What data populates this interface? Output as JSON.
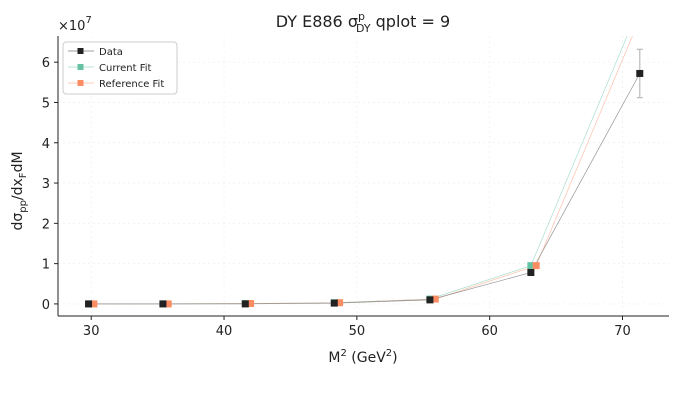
{
  "chart_data": {
    "type": "line",
    "title_main": "DY E886 σ",
    "title_sup": "p",
    "title_sub": "DY",
    "title_tail": " qplot = 9",
    "xlabel_main": "M",
    "xlabel_sup": "2",
    "xlabel_mid": " (GeV",
    "xlabel_sup2": "2",
    "xlabel_tail": ")",
    "ylabel_prefix": "dσ",
    "ylabel_sub1": "pp",
    "ylabel_mid": "/dx",
    "ylabel_sub2": "F",
    "ylabel_tail": "dM",
    "y_multiplier_base": "×10",
    "y_multiplier_exp": "7",
    "xlim": [
      27.5,
      73.5
    ],
    "ylim": [
      -0.3,
      6.65
    ],
    "x_ticks": [
      30,
      40,
      50,
      60,
      70
    ],
    "y_ticks": [
      0,
      1,
      2,
      3,
      4,
      5,
      6
    ],
    "y_scale_note": "values in units of 1e7",
    "grid": true,
    "legend_position": "top-left",
    "series": [
      {
        "name": "Data",
        "color": "#222222",
        "line_color": "#888888",
        "x": [
          29.8,
          35.4,
          41.6,
          48.3,
          55.5,
          63.1,
          71.3
        ],
        "y": [
          0.0,
          0.0,
          0.0,
          0.02,
          0.1,
          0.78,
          5.72
        ],
        "yerr": [
          0.0,
          0.0,
          0.0,
          0.0,
          0.0,
          0.03,
          0.6
        ]
      },
      {
        "name": "Current Fit",
        "color": "#66c2a5",
        "x": [
          29.8,
          35.4,
          41.6,
          48.3,
          55.5,
          63.1,
          71.3
        ],
        "y": [
          0.0,
          0.0,
          0.01,
          0.03,
          0.12,
          0.95,
          7.4
        ]
      },
      {
        "name": "Reference Fit",
        "color": "#fc8d62",
        "x": [
          30.2,
          35.8,
          42.0,
          48.7,
          55.9,
          63.5,
          71.7
        ],
        "y": [
          0.0,
          0.0,
          0.01,
          0.03,
          0.12,
          0.95,
          7.4
        ]
      }
    ]
  }
}
